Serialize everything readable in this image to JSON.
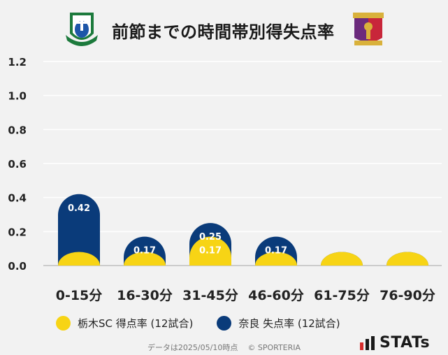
{
  "header": {
    "title": "前節までの時間帯別得失点率"
  },
  "colors": {
    "home": "#f7d415",
    "away": "#0a3b7a",
    "grid": "#ffffff",
    "axis_text": "#222222"
  },
  "chart_data": {
    "type": "bar",
    "categories": [
      "0-15分",
      "16-30分",
      "31-45分",
      "46-60分",
      "61-75分",
      "76-90分"
    ],
    "series": [
      {
        "name": "栃木SC 得点率 (12試合)",
        "values": [
          0.08,
          0.08,
          0.17,
          0.08,
          0.08,
          0.08
        ],
        "labels": [
          "",
          "",
          "0.17",
          "",
          "",
          ""
        ]
      },
      {
        "name": "奈良 失点率 (12試合)",
        "values": [
          0.42,
          0.17,
          0.25,
          0.17,
          0.08,
          0.08
        ],
        "labels": [
          "0.42",
          "0.17",
          "0.25",
          "0.17",
          "",
          ""
        ]
      }
    ],
    "yticks": [
      "0.0",
      "0.2",
      "0.4",
      "0.6",
      "0.8",
      "1.0",
      "1.2"
    ],
    "ylim": [
      0,
      1.2
    ],
    "grid": true,
    "legend_position": "bottom"
  },
  "legend": {
    "home_label": "栃木SC 得点率 (12試合)",
    "away_label": "奈良 失点率 (12試合)"
  },
  "footer": {
    "data_date": "データは2025/05/10時点",
    "copyright": "© SPORTERIA"
  },
  "brand": {
    "stats_text": "STATs"
  },
  "logos": {
    "left": "tochigi-sc-emblem",
    "right": "nara-club-emblem"
  }
}
